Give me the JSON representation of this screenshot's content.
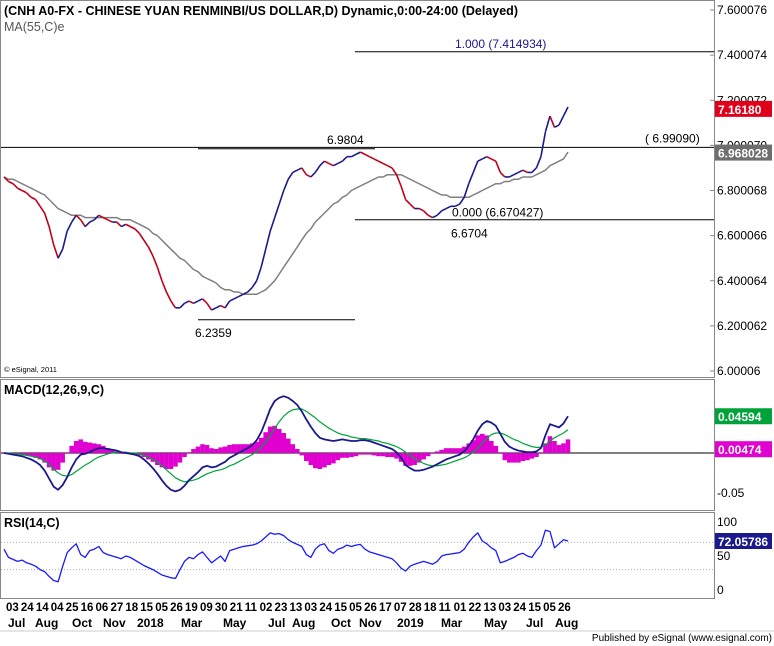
{
  "chart_data": [
    {
      "type": "line",
      "title": "(CNH A0-FX - CHINESE YUAN RENMINBI/US DOLLAR,D) Dynamic,0:00-24:00 (Delayed)",
      "ma_label": "MA(55,C)e",
      "copyright": "© eSignal, 2011",
      "ylim": [
        6.0,
        7.6
      ],
      "yticks": [
        {
          "v": 7.6,
          "t": "7.600076"
        },
        {
          "v": 7.4,
          "t": "7.400074"
        },
        {
          "v": 7.2,
          "t": "7.200072"
        },
        {
          "v": 7.0,
          "t": "7.000070"
        },
        {
          "v": 6.8,
          "t": "6.800068"
        },
        {
          "v": 6.6,
          "t": "6.600066"
        },
        {
          "v": 6.4,
          "t": "6.400064"
        },
        {
          "v": 6.2,
          "t": "6.200062"
        },
        {
          "v": 6.0,
          "t": "6.00006"
        }
      ],
      "price_tag": {
        "value": 7.1618,
        "text": "7.16180",
        "color": "#e0001b"
      },
      "ma_tag": {
        "value": 6.968028,
        "text": "6.968028",
        "color": "#6e6e6e"
      },
      "annotations": [
        {
          "text": "1.000 (7.414934)",
          "value": 7.414934,
          "color": "#1a1a8c"
        },
        {
          "text": "( 6.99090)",
          "value": 6.9909,
          "color": "#000000"
        },
        {
          "text": "0.000 (6.670427)",
          "value": 6.670427,
          "color": "#000000"
        },
        {
          "text": "6.9804",
          "value": 6.9804,
          "color": "#000000"
        },
        {
          "text": "6.6704",
          "value": 6.6704,
          "color": "#000000"
        },
        {
          "text": "6.2359",
          "value": 6.2359,
          "color": "#000000"
        }
      ],
      "series": [
        {
          "name": "CNH",
          "color": "#c0001b",
          "values": [
            6.86,
            6.84,
            6.83,
            6.81,
            6.8,
            6.79,
            6.77,
            6.76,
            6.73,
            6.7,
            6.64,
            6.56,
            6.5,
            6.54,
            6.62,
            6.66,
            6.69,
            6.67,
            6.64,
            6.66,
            6.67,
            6.69,
            6.68,
            6.67,
            6.66,
            6.66,
            6.64,
            6.65,
            6.64,
            6.63,
            6.61,
            6.58,
            6.55,
            6.51,
            6.46,
            6.4,
            6.35,
            6.31,
            6.28,
            6.28,
            6.3,
            6.31,
            6.3,
            6.31,
            6.32,
            6.3,
            6.27,
            6.28,
            6.29,
            6.28,
            6.31,
            6.32,
            6.33,
            6.34,
            6.35,
            6.37,
            6.4,
            6.46,
            6.54,
            6.62,
            6.68,
            6.74,
            6.8,
            6.85,
            6.88,
            6.89,
            6.9,
            6.87,
            6.86,
            6.88,
            6.91,
            6.93,
            6.92,
            6.91,
            6.92,
            6.93,
            6.95,
            6.95,
            6.96,
            6.97,
            6.96,
            6.95,
            6.94,
            6.93,
            6.92,
            6.91,
            6.9,
            6.87,
            6.82,
            6.76,
            6.74,
            6.72,
            6.72,
            6.71,
            6.69,
            6.68,
            6.69,
            6.71,
            6.72,
            6.73,
            6.73,
            6.74,
            6.77,
            6.83,
            6.88,
            6.93,
            6.94,
            6.95,
            6.94,
            6.93,
            6.88,
            6.86,
            6.86,
            6.87,
            6.88,
            6.89,
            6.88,
            6.88,
            6.9,
            6.95,
            7.06,
            7.13,
            7.08,
            7.09,
            7.13,
            7.17
          ]
        },
        {
          "name": "MA(55,C)e",
          "color": "#808080",
          "values": [
            6.86,
            6.85,
            6.85,
            6.84,
            6.83,
            6.82,
            6.81,
            6.8,
            6.79,
            6.78,
            6.76,
            6.74,
            6.72,
            6.71,
            6.7,
            6.69,
            6.69,
            6.69,
            6.68,
            6.68,
            6.68,
            6.68,
            6.68,
            6.68,
            6.68,
            6.68,
            6.67,
            6.67,
            6.67,
            6.66,
            6.65,
            6.64,
            6.63,
            6.61,
            6.6,
            6.58,
            6.56,
            6.54,
            6.52,
            6.5,
            6.49,
            6.47,
            6.45,
            6.44,
            6.42,
            6.41,
            6.4,
            6.39,
            6.37,
            6.36,
            6.36,
            6.35,
            6.35,
            6.34,
            6.34,
            6.34,
            6.34,
            6.35,
            6.36,
            6.38,
            6.4,
            6.43,
            6.46,
            6.49,
            6.52,
            6.55,
            6.58,
            6.61,
            6.63,
            6.66,
            6.68,
            6.7,
            6.72,
            6.74,
            6.75,
            6.77,
            6.78,
            6.8,
            6.81,
            6.82,
            6.83,
            6.84,
            6.85,
            6.86,
            6.86,
            6.87,
            6.87,
            6.87,
            6.87,
            6.86,
            6.85,
            6.84,
            6.83,
            6.82,
            6.81,
            6.8,
            6.79,
            6.78,
            6.78,
            6.77,
            6.77,
            6.77,
            6.77,
            6.77,
            6.78,
            6.79,
            6.8,
            6.81,
            6.82,
            6.83,
            6.83,
            6.84,
            6.84,
            6.85,
            6.85,
            6.86,
            6.86,
            6.86,
            6.87,
            6.88,
            6.89,
            6.91,
            6.92,
            6.93,
            6.94,
            6.97
          ]
        }
      ]
    },
    {
      "type": "line",
      "title": "MACD(12,26,9,C)",
      "ylim": [
        -0.07,
        0.085
      ],
      "yticks": [
        {
          "v": -0.05,
          "t": "-0.05"
        }
      ],
      "tag_macd": {
        "value": 0.04594,
        "text": "0.04594",
        "color": "#00a33a"
      },
      "tag_hist": {
        "value": 0.00474,
        "text": "0.00474",
        "color": "#e000d0"
      },
      "series": [
        {
          "name": "MACD",
          "color": "#1a1a8c",
          "values": [
            0.0,
            -0.001,
            -0.002,
            -0.003,
            -0.004,
            -0.006,
            -0.008,
            -0.011,
            -0.015,
            -0.022,
            -0.032,
            -0.042,
            -0.046,
            -0.04,
            -0.03,
            -0.018,
            -0.008,
            -0.002,
            -0.001,
            0.001,
            0.004,
            0.006,
            0.006,
            0.005,
            0.004,
            0.003,
            0.001,
            0.0,
            -0.001,
            -0.002,
            -0.004,
            -0.008,
            -0.013,
            -0.019,
            -0.026,
            -0.034,
            -0.041,
            -0.046,
            -0.048,
            -0.046,
            -0.041,
            -0.034,
            -0.029,
            -0.024,
            -0.018,
            -0.016,
            -0.018,
            -0.017,
            -0.014,
            -0.011,
            -0.006,
            -0.003,
            0.0,
            0.003,
            0.006,
            0.01,
            0.016,
            0.026,
            0.04,
            0.055,
            0.065,
            0.069,
            0.071,
            0.069,
            0.065,
            0.06,
            0.052,
            0.042,
            0.033,
            0.025,
            0.019,
            0.017,
            0.016,
            0.015,
            0.016,
            0.017,
            0.016,
            0.015,
            0.015,
            0.016,
            0.016,
            0.015,
            0.013,
            0.011,
            0.009,
            0.007,
            0.005,
            0.001,
            -0.006,
            -0.015,
            -0.019,
            -0.022,
            -0.022,
            -0.021,
            -0.019,
            -0.017,
            -0.014,
            -0.011,
            -0.008,
            -0.006,
            -0.004,
            -0.002,
            0.002,
            0.009,
            0.017,
            0.028,
            0.036,
            0.04,
            0.038,
            0.034,
            0.024,
            0.014,
            0.008,
            0.005,
            0.003,
            0.002,
            0.001,
            0.001,
            0.002,
            0.006,
            0.022,
            0.036,
            0.034,
            0.032,
            0.037,
            0.046
          ]
        },
        {
          "name": "Signal",
          "color": "#00a33a",
          "values": [
            0.0,
            0.0,
            -0.001,
            -0.001,
            -0.002,
            -0.003,
            -0.004,
            -0.005,
            -0.007,
            -0.01,
            -0.014,
            -0.02,
            -0.025,
            -0.028,
            -0.029,
            -0.027,
            -0.023,
            -0.019,
            -0.015,
            -0.012,
            -0.008,
            -0.005,
            -0.003,
            -0.001,
            0.0,
            0.001,
            0.001,
            0.001,
            0.0,
            0.0,
            -0.001,
            -0.003,
            -0.005,
            -0.008,
            -0.011,
            -0.016,
            -0.021,
            -0.026,
            -0.031,
            -0.034,
            -0.036,
            -0.035,
            -0.034,
            -0.032,
            -0.029,
            -0.026,
            -0.024,
            -0.022,
            -0.021,
            -0.019,
            -0.016,
            -0.014,
            -0.011,
            -0.008,
            -0.005,
            -0.002,
            0.002,
            0.007,
            0.014,
            0.022,
            0.031,
            0.039,
            0.046,
            0.051,
            0.054,
            0.055,
            0.055,
            0.052,
            0.048,
            0.044,
            0.039,
            0.035,
            0.031,
            0.028,
            0.025,
            0.023,
            0.022,
            0.02,
            0.019,
            0.018,
            0.018,
            0.017,
            0.016,
            0.015,
            0.013,
            0.012,
            0.01,
            0.008,
            0.005,
            0.001,
            -0.003,
            -0.007,
            -0.01,
            -0.013,
            -0.015,
            -0.016,
            -0.016,
            -0.015,
            -0.014,
            -0.012,
            -0.01,
            -0.008,
            -0.006,
            -0.003,
            0.001,
            0.006,
            0.012,
            0.018,
            0.023,
            0.025,
            0.025,
            0.023,
            0.02,
            0.017,
            0.015,
            0.012,
            0.01,
            0.008,
            0.007,
            0.007,
            0.01,
            0.015,
            0.019,
            0.022,
            0.025,
            0.029
          ]
        }
      ]
    },
    {
      "type": "line",
      "title": "RSI(14,C)",
      "ylim": [
        0,
        100
      ],
      "yticks": [
        {
          "v": 100,
          "t": "100"
        },
        {
          "v": 50,
          "t": "50"
        },
        {
          "v": 0,
          "t": "0"
        }
      ],
      "tag": {
        "value": 72.05786,
        "text": "72.05786",
        "color": "#1a1a8c"
      },
      "series": [
        {
          "name": "RSI",
          "color": "#1a1aff",
          "values": [
            60,
            48,
            45,
            42,
            44,
            40,
            38,
            35,
            30,
            27,
            20,
            14,
            12,
            35,
            55,
            62,
            68,
            52,
            48,
            58,
            60,
            64,
            55,
            52,
            50,
            48,
            46,
            50,
            48,
            44,
            40,
            36,
            33,
            30,
            26,
            22,
            20,
            18,
            17,
            30,
            42,
            48,
            46,
            52,
            56,
            48,
            40,
            45,
            50,
            42,
            58,
            60,
            62,
            64,
            65,
            66,
            68,
            72,
            78,
            84,
            82,
            83,
            80,
            74,
            70,
            67,
            64,
            52,
            48,
            60,
            66,
            68,
            58,
            54,
            60,
            62,
            66,
            64,
            66,
            67,
            60,
            56,
            54,
            52,
            50,
            48,
            46,
            40,
            32,
            28,
            35,
            38,
            40,
            42,
            40,
            38,
            42,
            50,
            52,
            53,
            54,
            55,
            60,
            70,
            78,
            84,
            72,
            68,
            62,
            58,
            40,
            42,
            45,
            48,
            52,
            54,
            50,
            48,
            58,
            66,
            88,
            86,
            62,
            68,
            74,
            72
          ]
        }
      ]
    }
  ],
  "x_axis": {
    "day_labels": [
      "03",
      "24",
      "14",
      "04",
      "25",
      "16",
      "06",
      "27",
      "18",
      "15",
      "05",
      "26",
      "19",
      "09",
      "30",
      "21",
      "11",
      "02",
      "23",
      "13",
      "03",
      "24",
      "15",
      "05",
      "26",
      "17",
      "07",
      "28",
      "18",
      "11",
      "01",
      "22",
      "13",
      "03",
      "24",
      "15",
      "05",
      "26"
    ],
    "month_labels": [
      "Jul",
      "Aug",
      "Oct",
      "Nov",
      "2018",
      "Mar",
      "May",
      "Jul",
      "Aug",
      "Oct",
      "Nov",
      "2019",
      "Mar",
      "May",
      "Jul",
      "Aug"
    ]
  },
  "footer": "Published by eSignal (www.esignal.com)"
}
